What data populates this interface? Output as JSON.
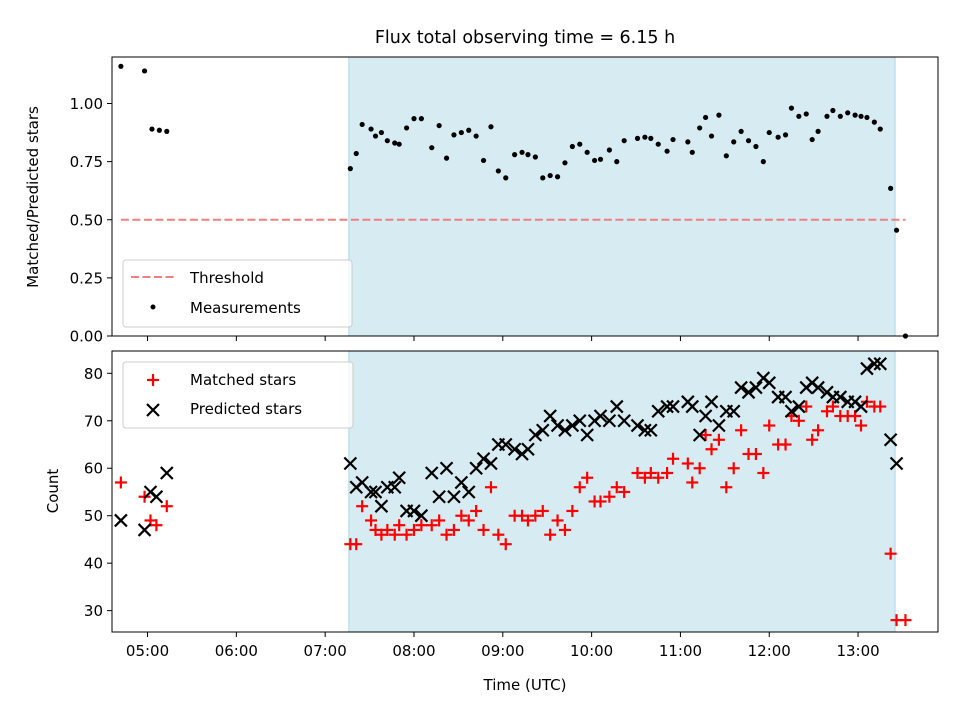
{
  "chart_data": [
    {
      "type": "scatter",
      "title": "Flux total observing time = 6.15 h",
      "ylabel": "Matched/Predicted stars",
      "xlabel": "",
      "xlim": [
        "04:36",
        "13:54"
      ],
      "ylim": [
        0,
        1.2
      ],
      "x_ticks": [
        "05:00",
        "06:00",
        "07:00",
        "08:00",
        "09:00",
        "10:00",
        "11:00",
        "12:00",
        "13:00"
      ],
      "y_ticks": [
        "0.00",
        "0.25",
        "0.50",
        "0.75",
        "1.00"
      ],
      "shaded_span": {
        "x": [
          "07:16",
          "13:25"
        ],
        "color": "#add8e6"
      },
      "threshold": {
        "name": "Threshold",
        "y": 0.5,
        "x": [
          "04:42",
          "13:32"
        ],
        "color": "#f08080",
        "style": "dashed"
      },
      "legend": {
        "position": "lower-left",
        "entries": [
          "Threshold",
          "Measurements"
        ]
      },
      "series": [
        {
          "name": "Measurements",
          "marker": "dot",
          "color": "#000000",
          "points": [
            [
              "04:42",
              1.16
            ],
            [
              "04:58",
              1.14
            ],
            [
              "05:03",
              0.89
            ],
            [
              "05:08",
              0.885
            ],
            [
              "05:13",
              0.88
            ],
            [
              "07:17",
              0.72
            ],
            [
              "07:21",
              0.785
            ],
            [
              "07:25",
              0.91
            ],
            [
              "07:31",
              0.89
            ],
            [
              "07:34",
              0.86
            ],
            [
              "07:38",
              0.875
            ],
            [
              "07:42",
              0.84
            ],
            [
              "07:47",
              0.83
            ],
            [
              "07:50",
              0.825
            ],
            [
              "07:55",
              0.895
            ],
            [
              "08:00",
              0.935
            ],
            [
              "08:05",
              0.935
            ],
            [
              "08:12",
              0.81
            ],
            [
              "08:17",
              0.905
            ],
            [
              "08:22",
              0.765
            ],
            [
              "08:27",
              0.865
            ],
            [
              "08:32",
              0.875
            ],
            [
              "08:37",
              0.885
            ],
            [
              "08:42",
              0.86
            ],
            [
              "08:47",
              0.755
            ],
            [
              "08:52",
              0.9
            ],
            [
              "08:57",
              0.71
            ],
            [
              "09:02",
              0.68
            ],
            [
              "09:08",
              0.78
            ],
            [
              "09:13",
              0.79
            ],
            [
              "09:17",
              0.78
            ],
            [
              "09:22",
              0.77
            ],
            [
              "09:27",
              0.68
            ],
            [
              "09:32",
              0.69
            ],
            [
              "09:37",
              0.685
            ],
            [
              "09:42",
              0.745
            ],
            [
              "09:47",
              0.815
            ],
            [
              "09:52",
              0.825
            ],
            [
              "09:57",
              0.79
            ],
            [
              "10:02",
              0.755
            ],
            [
              "10:06",
              0.76
            ],
            [
              "10:12",
              0.8
            ],
            [
              "10:17",
              0.75
            ],
            [
              "10:22",
              0.84
            ],
            [
              "10:31",
              0.85
            ],
            [
              "10:36",
              0.855
            ],
            [
              "10:40",
              0.85
            ],
            [
              "10:45",
              0.825
            ],
            [
              "10:51",
              0.795
            ],
            [
              "10:55",
              0.845
            ],
            [
              "11:05",
              0.835
            ],
            [
              "11:08",
              0.79
            ],
            [
              "11:13",
              0.895
            ],
            [
              "11:17",
              0.94
            ],
            [
              "11:21",
              0.86
            ],
            [
              "11:26",
              0.95
            ],
            [
              "11:31",
              0.775
            ],
            [
              "11:36",
              0.835
            ],
            [
              "11:41",
              0.88
            ],
            [
              "11:46",
              0.84
            ],
            [
              "11:51",
              0.815
            ],
            [
              "11:56",
              0.75
            ],
            [
              "12:00",
              0.875
            ],
            [
              "12:06",
              0.855
            ],
            [
              "12:11",
              0.865
            ],
            [
              "12:15",
              0.98
            ],
            [
              "12:20",
              0.945
            ],
            [
              "12:25",
              0.955
            ],
            [
              "12:29",
              0.845
            ],
            [
              "12:33",
              0.88
            ],
            [
              "12:39",
              0.945
            ],
            [
              "12:43",
              0.97
            ],
            [
              "12:48",
              0.945
            ],
            [
              "12:53",
              0.96
            ],
            [
              "12:58",
              0.95
            ],
            [
              "13:02",
              0.945
            ],
            [
              "13:06",
              0.94
            ],
            [
              "13:11",
              0.92
            ],
            [
              "13:15",
              0.89
            ],
            [
              "13:22",
              0.635
            ],
            [
              "13:26",
              0.455
            ],
            [
              "13:32",
              0.0
            ]
          ]
        }
      ]
    },
    {
      "type": "scatter",
      "title": "",
      "ylabel": "Count",
      "xlabel": "Time (UTC)",
      "xlim": [
        "04:36",
        "13:54"
      ],
      "ylim": [
        25.5,
        84.7
      ],
      "x_ticks": [
        "05:00",
        "06:00",
        "07:00",
        "08:00",
        "09:00",
        "10:00",
        "11:00",
        "12:00",
        "13:00"
      ],
      "y_ticks": [
        "30",
        "40",
        "50",
        "60",
        "70",
        "80"
      ],
      "shaded_span": {
        "x": [
          "07:16",
          "13:25"
        ],
        "color": "#add8e6"
      },
      "legend": {
        "position": "upper-left",
        "entries": [
          "Matched stars",
          "Predicted stars"
        ]
      },
      "series": [
        {
          "name": "Matched stars",
          "marker": "+",
          "color": "#ff0000",
          "points": [
            [
              "04:42",
              57
            ],
            [
              "04:58",
              54
            ],
            [
              "05:02",
              49
            ],
            [
              "05:06",
              48
            ],
            [
              "05:13",
              52
            ],
            [
              "07:17",
              44
            ],
            [
              "07:21",
              44
            ],
            [
              "07:25",
              52
            ],
            [
              "07:31",
              49
            ],
            [
              "07:34",
              47
            ],
            [
              "07:38",
              46
            ],
            [
              "07:42",
              47
            ],
            [
              "07:47",
              46
            ],
            [
              "07:50",
              48
            ],
            [
              "07:55",
              46
            ],
            [
              "08:00",
              47
            ],
            [
              "08:05",
              48
            ],
            [
              "08:12",
              48
            ],
            [
              "08:17",
              49
            ],
            [
              "08:22",
              46
            ],
            [
              "08:27",
              47
            ],
            [
              "08:32",
              50
            ],
            [
              "08:37",
              49
            ],
            [
              "08:42",
              51
            ],
            [
              "08:47",
              47
            ],
            [
              "08:52",
              56
            ],
            [
              "08:57",
              46
            ],
            [
              "09:02",
              44
            ],
            [
              "09:08",
              50
            ],
            [
              "09:13",
              50
            ],
            [
              "09:17",
              49
            ],
            [
              "09:22",
              50
            ],
            [
              "09:27",
              51
            ],
            [
              "09:32",
              46
            ],
            [
              "09:37",
              49
            ],
            [
              "09:42",
              47
            ],
            [
              "09:47",
              51
            ],
            [
              "09:52",
              56
            ],
            [
              "09:57",
              58
            ],
            [
              "10:02",
              53
            ],
            [
              "10:06",
              53
            ],
            [
              "10:12",
              54
            ],
            [
              "10:17",
              56
            ],
            [
              "10:22",
              55
            ],
            [
              "10:31",
              59
            ],
            [
              "10:36",
              58
            ],
            [
              "10:40",
              59
            ],
            [
              "10:45",
              58
            ],
            [
              "10:51",
              59
            ],
            [
              "10:55",
              62
            ],
            [
              "11:05",
              61
            ],
            [
              "11:08",
              57
            ],
            [
              "11:13",
              60
            ],
            [
              "11:17",
              67
            ],
            [
              "11:21",
              64
            ],
            [
              "11:26",
              66
            ],
            [
              "11:31",
              56
            ],
            [
              "11:36",
              60
            ],
            [
              "11:41",
              68
            ],
            [
              "11:46",
              63
            ],
            [
              "11:51",
              63
            ],
            [
              "11:56",
              59
            ],
            [
              "12:00",
              69
            ],
            [
              "12:06",
              65
            ],
            [
              "12:11",
              65
            ],
            [
              "12:15",
              71
            ],
            [
              "12:20",
              70
            ],
            [
              "12:25",
              73
            ],
            [
              "12:29",
              66
            ],
            [
              "12:33",
              68
            ],
            [
              "12:39",
              72
            ],
            [
              "12:43",
              73
            ],
            [
              "12:48",
              71
            ],
            [
              "12:53",
              71
            ],
            [
              "12:58",
              71
            ],
            [
              "13:02",
              69
            ],
            [
              "13:06",
              74
            ],
            [
              "13:11",
              73
            ],
            [
              "13:15",
              73
            ],
            [
              "13:22",
              42
            ],
            [
              "13:26",
              28
            ],
            [
              "13:32",
              28
            ]
          ]
        },
        {
          "name": "Predicted stars",
          "marker": "x",
          "color": "#000000",
          "points": [
            [
              "04:42",
              49
            ],
            [
              "04:58",
              47
            ],
            [
              "05:02",
              55
            ],
            [
              "05:06",
              54
            ],
            [
              "05:13",
              59
            ],
            [
              "07:17",
              61
            ],
            [
              "07:21",
              56
            ],
            [
              "07:25",
              57
            ],
            [
              "07:31",
              55
            ],
            [
              "07:34",
              55
            ],
            [
              "07:38",
              52
            ],
            [
              "07:42",
              56
            ],
            [
              "07:47",
              56
            ],
            [
              "07:50",
              58
            ],
            [
              "07:55",
              51
            ],
            [
              "08:00",
              51
            ],
            [
              "08:05",
              50
            ],
            [
              "08:12",
              59
            ],
            [
              "08:17",
              54
            ],
            [
              "08:22",
              60
            ],
            [
              "08:27",
              54
            ],
            [
              "08:32",
              57
            ],
            [
              "08:37",
              55
            ],
            [
              "08:42",
              60
            ],
            [
              "08:47",
              62
            ],
            [
              "08:52",
              61
            ],
            [
              "08:57",
              65
            ],
            [
              "09:02",
              65
            ],
            [
              "09:08",
              64
            ],
            [
              "09:13",
              63
            ],
            [
              "09:17",
              64
            ],
            [
              "09:22",
              67
            ],
            [
              "09:27",
              68
            ],
            [
              "09:32",
              71
            ],
            [
              "09:37",
              69
            ],
            [
              "09:42",
              68
            ],
            [
              "09:47",
              69
            ],
            [
              "09:52",
              70
            ],
            [
              "09:57",
              67
            ],
            [
              "10:02",
              70
            ],
            [
              "10:06",
              71
            ],
            [
              "10:12",
              70
            ],
            [
              "10:17",
              73
            ],
            [
              "10:22",
              70
            ],
            [
              "10:31",
              69
            ],
            [
              "10:36",
              68
            ],
            [
              "10:40",
              68
            ],
            [
              "10:45",
              72
            ],
            [
              "10:51",
              73
            ],
            [
              "10:55",
              73
            ],
            [
              "11:05",
              74
            ],
            [
              "11:08",
              73
            ],
            [
              "11:13",
              67
            ],
            [
              "11:17",
              71
            ],
            [
              "11:21",
              74
            ],
            [
              "11:26",
              69
            ],
            [
              "11:31",
              72
            ],
            [
              "11:36",
              72
            ],
            [
              "11:41",
              77
            ],
            [
              "11:46",
              76
            ],
            [
              "11:51",
              77
            ],
            [
              "11:56",
              79
            ],
            [
              "12:00",
              78
            ],
            [
              "12:06",
              75
            ],
            [
              "12:11",
              75
            ],
            [
              "12:15",
              72
            ],
            [
              "12:20",
              73
            ],
            [
              "12:25",
              77
            ],
            [
              "12:29",
              78
            ],
            [
              "12:33",
              77
            ],
            [
              "12:39",
              76
            ],
            [
              "12:43",
              75
            ],
            [
              "12:48",
              75
            ],
            [
              "12:53",
              74
            ],
            [
              "12:58",
              74
            ],
            [
              "13:02",
              73
            ],
            [
              "13:06",
              81
            ],
            [
              "13:11",
              82
            ],
            [
              "13:15",
              82
            ],
            [
              "13:22",
              66
            ],
            [
              "13:26",
              61
            ]
          ]
        }
      ]
    }
  ]
}
